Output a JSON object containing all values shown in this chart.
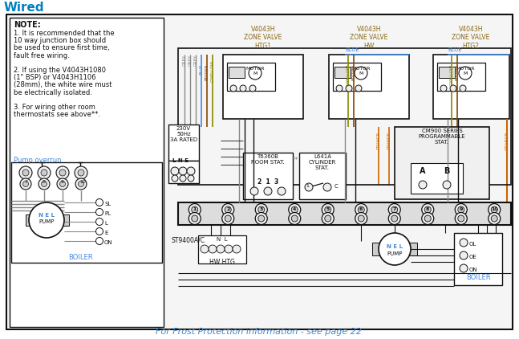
{
  "title": "Wired",
  "title_color": "#0080C0",
  "bg_color": "#FFFFFF",
  "note_text": "NOTE:",
  "note_lines": [
    "1. It is recommended that the",
    "10 way junction box should",
    "be used to ensure first time,",
    "fault free wiring.",
    "",
    "2. If using the V4043H1080",
    "(1\" BSP) or V4043H1106",
    "(28mm), the white wire must",
    "be electrically isolated.",
    "",
    "3. For wiring other room",
    "thermostats see above**."
  ],
  "pump_overrun_label": "Pump overrun",
  "frost_text": "For Frost Protection information - see page 22",
  "frost_color": "#4488CC",
  "zone_labels": [
    "V4043H\nZONE VALVE\nHTG1",
    "V4043H\nZONE VALVE\nHW",
    "V4043H\nZONE VALVE\nHTG2"
  ],
  "zone_color": "#8B6914",
  "grey": "#888888",
  "blue": "#4488DD",
  "brown": "#884400",
  "gyellow": "#888800",
  "orange": "#CC6600",
  "black": "#111111",
  "lt_grey": "#CCCCCC",
  "junction_nums": [
    "1",
    "2",
    "3",
    "4",
    "5",
    "6",
    "7",
    "8",
    "9",
    "10"
  ]
}
